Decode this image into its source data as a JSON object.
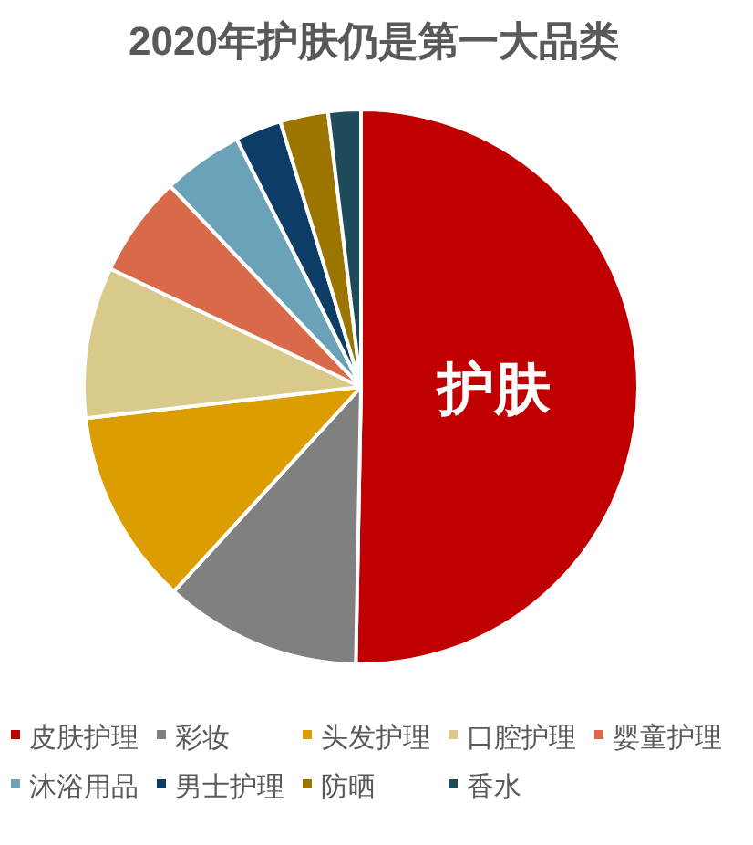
{
  "chart_data": {
    "type": "pie",
    "title": "2020年护肤仍是第一大品类",
    "categories": [
      "皮肤护理",
      "彩妆",
      "头发护理",
      "口腔护理",
      "婴童护理",
      "沐浴用品",
      "男士护理",
      "防晒",
      "香水"
    ],
    "values": [
      50.3,
      11.5,
      11.4,
      8.8,
      5.9,
      4.7,
      2.7,
      2.8,
      1.9
    ],
    "colors": [
      "#c00000",
      "#808080",
      "#dc9d00",
      "#d9c98a",
      "#d86a4a",
      "#6aa2b8",
      "#0d3d66",
      "#9c7400",
      "#1f4a5a"
    ],
    "annotations": [
      "护肤"
    ],
    "legend": "bottom"
  }
}
